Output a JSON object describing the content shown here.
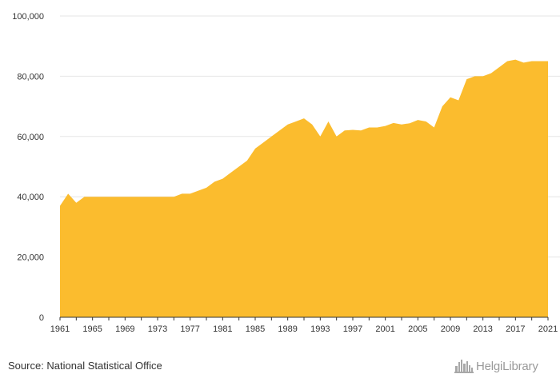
{
  "chart_data": {
    "type": "area",
    "title": "",
    "xlabel": "",
    "ylabel": "",
    "grid": "horizontal",
    "legend": "none",
    "ylim": [
      0,
      100000
    ],
    "xlim": [
      1961,
      2021
    ],
    "yticks": [
      "0",
      "20,000",
      "40,000",
      "60,000",
      "80,000",
      "100,000"
    ],
    "ytick_values": [
      0,
      20000,
      40000,
      60000,
      80000,
      100000
    ],
    "xticks": [
      "1961",
      "1965",
      "1969",
      "1973",
      "1977",
      "1981",
      "1985",
      "1989",
      "1993",
      "1997",
      "2001",
      "2005",
      "2009",
      "2013",
      "2017",
      "2021"
    ],
    "x": [
      1961,
      1962,
      1963,
      1964,
      1965,
      1966,
      1967,
      1968,
      1969,
      1970,
      1971,
      1972,
      1973,
      1974,
      1975,
      1976,
      1977,
      1978,
      1979,
      1980,
      1981,
      1982,
      1983,
      1984,
      1985,
      1986,
      1987,
      1988,
      1989,
      1990,
      1991,
      1992,
      1993,
      1994,
      1995,
      1996,
      1997,
      1998,
      1999,
      2000,
      2001,
      2002,
      2003,
      2004,
      2005,
      2006,
      2007,
      2008,
      2009,
      2010,
      2011,
      2012,
      2013,
      2014,
      2015,
      2016,
      2017,
      2018,
      2019,
      2020,
      2021
    ],
    "series": [
      {
        "values": [
          37000,
          41000,
          38000,
          40000,
          40000,
          40000,
          40000,
          40000,
          40000,
          40000,
          40000,
          40000,
          40000,
          40000,
          40000,
          41000,
          41000,
          42000,
          43000,
          45000,
          46000,
          48000,
          50000,
          52000,
          56000,
          58000,
          60000,
          62000,
          64000,
          65000,
          66000,
          64000,
          60000,
          65000,
          60000,
          62000,
          62200,
          62000,
          63000,
          63000,
          63500,
          64500,
          64000,
          64400,
          65500,
          65000,
          63000,
          70000,
          73000,
          72000,
          79000,
          80000,
          80000,
          81000,
          83000,
          85000,
          85500,
          84500,
          85000,
          85000,
          85000
        ],
        "color": "#FBBC2E"
      }
    ]
  },
  "source": "Source: National Statistical Office",
  "brand": {
    "name": "HelgiLibrary",
    "logo_icon": "city-skyline-icon"
  },
  "colors": {
    "area": "#FBBC2E",
    "grid": "#e6e6e6",
    "axis": "#333333",
    "brand_gray": "#9a9a9a"
  }
}
